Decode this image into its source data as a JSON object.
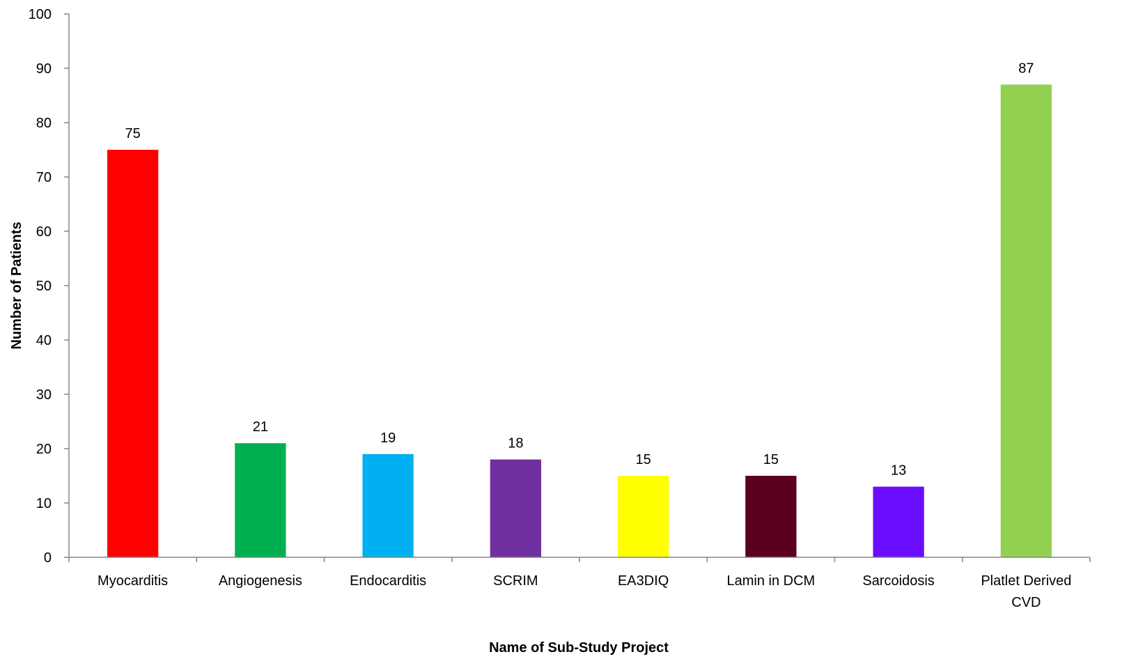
{
  "chart_data": {
    "type": "bar",
    "title": "",
    "xlabel": "Name of Sub-Study Project",
    "ylabel": "Number of Patients",
    "ylim": [
      0,
      100
    ],
    "yticks": [
      0,
      10,
      20,
      30,
      40,
      50,
      60,
      70,
      80,
      90,
      100
    ],
    "grid": false,
    "legend": "none",
    "categories": [
      [
        "Myocarditis"
      ],
      [
        "Angiogenesis"
      ],
      [
        "Endocarditis"
      ],
      [
        "SCRIM"
      ],
      [
        "EA3DIQ"
      ],
      [
        "Lamin in DCM"
      ],
      [
        "Sarcoidosis"
      ],
      [
        "Platlet Derived",
        "CVD"
      ]
    ],
    "values": [
      75,
      21,
      19,
      18,
      15,
      15,
      13,
      87
    ],
    "colors": [
      "#ff0000",
      "#00b050",
      "#00b0f0",
      "#7030a0",
      "#ffff00",
      "#5c0020",
      "#6a0dff",
      "#92d050"
    ]
  }
}
